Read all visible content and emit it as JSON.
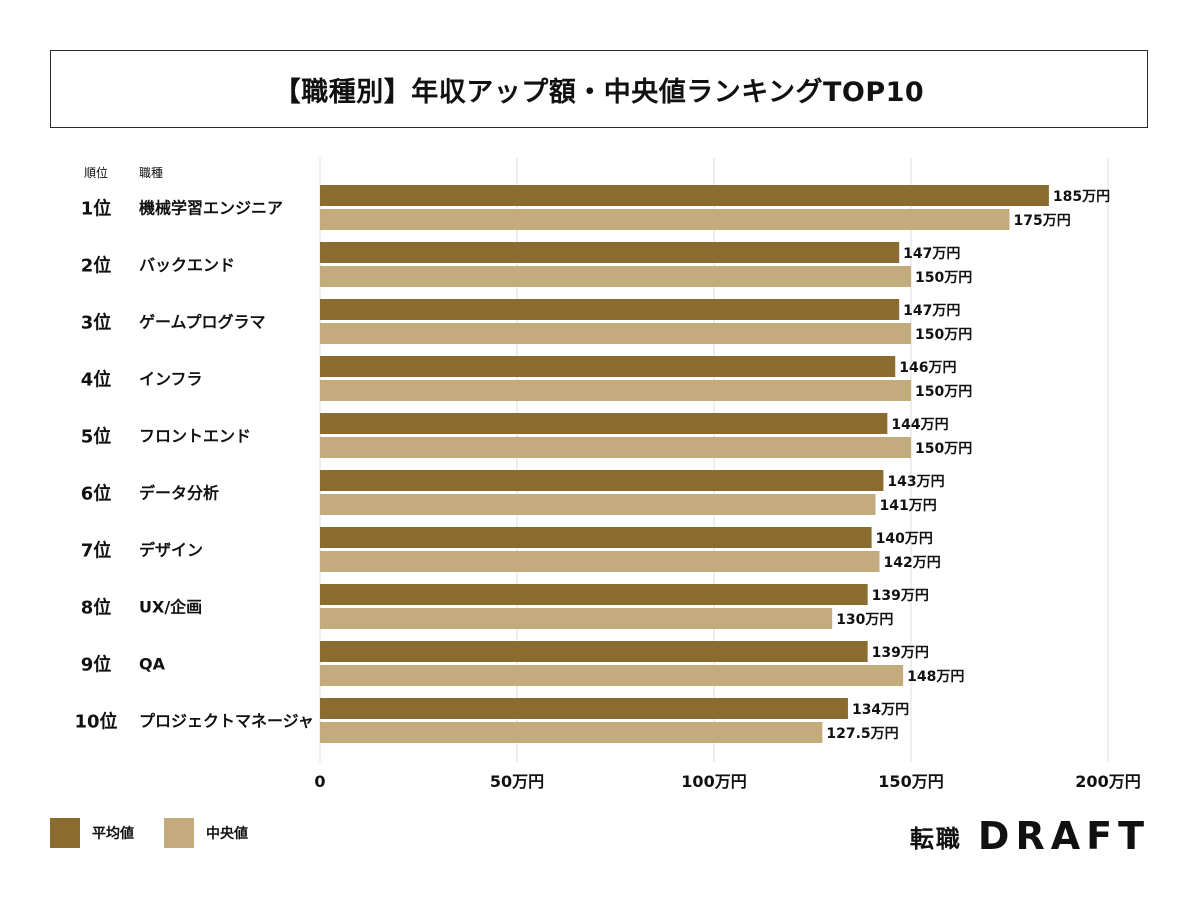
{
  "title": "【職種別】年収アップ額・中央値ランキングTOP10",
  "header": {
    "rank_col": "順位",
    "job_col": "職種"
  },
  "logo": {
    "kanji": "転職",
    "wordmark": "DRAFT"
  },
  "colors": {
    "average": "#8B6C30",
    "median": "#C4AB7D",
    "grid": "#dddddd",
    "text": "#111111"
  },
  "chart_data": {
    "type": "bar",
    "orientation": "horizontal",
    "title": "【職種別】年収アップ額・中央値ランキングTOP10",
    "categories": [
      "機械学習エンジニア",
      "バックエンド",
      "ゲームプログラマ",
      "インフラ",
      "フロントエンド",
      "データ分析",
      "デザイン",
      "UX/企画",
      "QA",
      "プロジェクトマネージャ"
    ],
    "ranks": [
      "1位",
      "2位",
      "3位",
      "4位",
      "5位",
      "6位",
      "7位",
      "8位",
      "9位",
      "10位"
    ],
    "series": [
      {
        "name": "平均値",
        "values": [
          185,
          147,
          147,
          146,
          144,
          143,
          140,
          139,
          139,
          134
        ],
        "labels": [
          "185万円",
          "147万円",
          "147万円",
          "146万円",
          "144万円",
          "143万円",
          "140万円",
          "139万円",
          "139万円",
          "134万円"
        ]
      },
      {
        "name": "中央値",
        "values": [
          175,
          150,
          150,
          150,
          150,
          141,
          142,
          130,
          148,
          127.5
        ],
        "labels": [
          "175万円",
          "150万円",
          "150万円",
          "150万円",
          "150万円",
          "141万円",
          "142万円",
          "130万円",
          "148万円",
          "127.5万円"
        ]
      }
    ],
    "xlim": [
      0,
      200
    ],
    "xticks": [
      0,
      50,
      100,
      150,
      200
    ],
    "xtick_labels": [
      "0",
      "50万円",
      "100万円",
      "150万円",
      "200万円"
    ],
    "unit": "万円",
    "grid": true,
    "legend": "bottom-left"
  }
}
